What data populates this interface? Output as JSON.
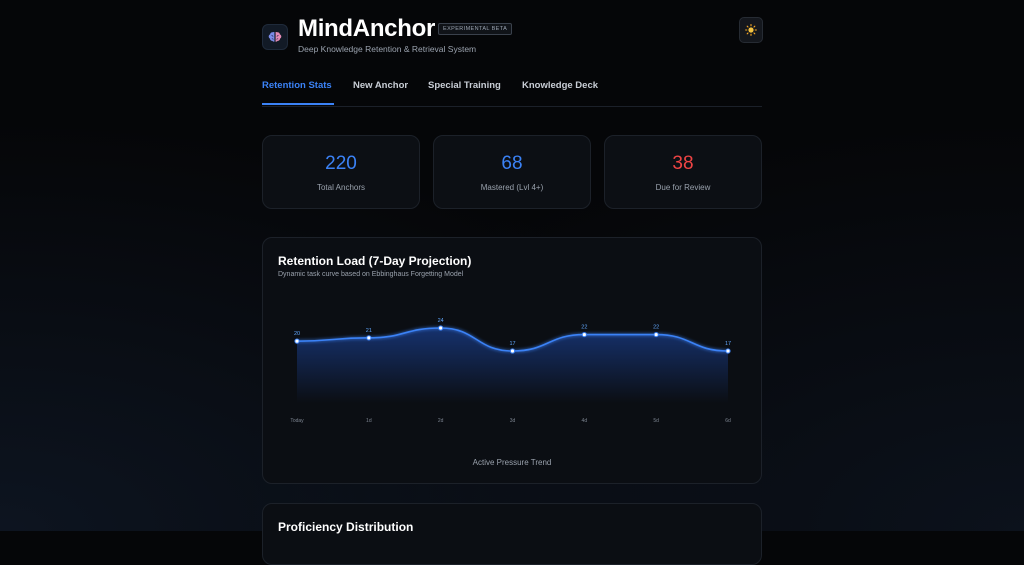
{
  "app": {
    "title": "MindAnchor",
    "badge": "EXPERIMENTAL BETA",
    "subtitle": "Deep Knowledge Retention & Retrieval System",
    "theme_icon": "sun-icon",
    "logo_icon": "brain-icon"
  },
  "tabs": [
    {
      "label": "Retention Stats",
      "active": true
    },
    {
      "label": "New Anchor",
      "active": false
    },
    {
      "label": "Special Training",
      "active": false
    },
    {
      "label": "Knowledge Deck",
      "active": false
    }
  ],
  "stats": [
    {
      "value": "220",
      "label": "Total Anchors",
      "color": "#3b82f6"
    },
    {
      "value": "68",
      "label": "Mastered (Lvl 4+)",
      "color": "#3b82f6"
    },
    {
      "value": "38",
      "label": "Due for Review",
      "color": "#ef4444"
    }
  ],
  "retention_chart": {
    "title": "Retention Load (7-Day Projection)",
    "subtitle": "Dynamic task curve based on Ebbinghaus Forgetting Model",
    "footer": "Active Pressure Trend"
  },
  "chart_data": {
    "type": "area",
    "categories": [
      "Today",
      "1d",
      "2d",
      "3d",
      "4d",
      "5d",
      "6d"
    ],
    "values": [
      20,
      21,
      24,
      17,
      22,
      22,
      17
    ],
    "title": "Retention Load (7-Day Projection)",
    "subtitle": "Dynamic task curve based on Ebbinghaus Forgetting Model",
    "xlabel": "Active Pressure Trend",
    "ylabel": "",
    "grid": false,
    "line_color": "#3b82f6"
  },
  "next_section": {
    "title": "Proficiency Distribution"
  }
}
